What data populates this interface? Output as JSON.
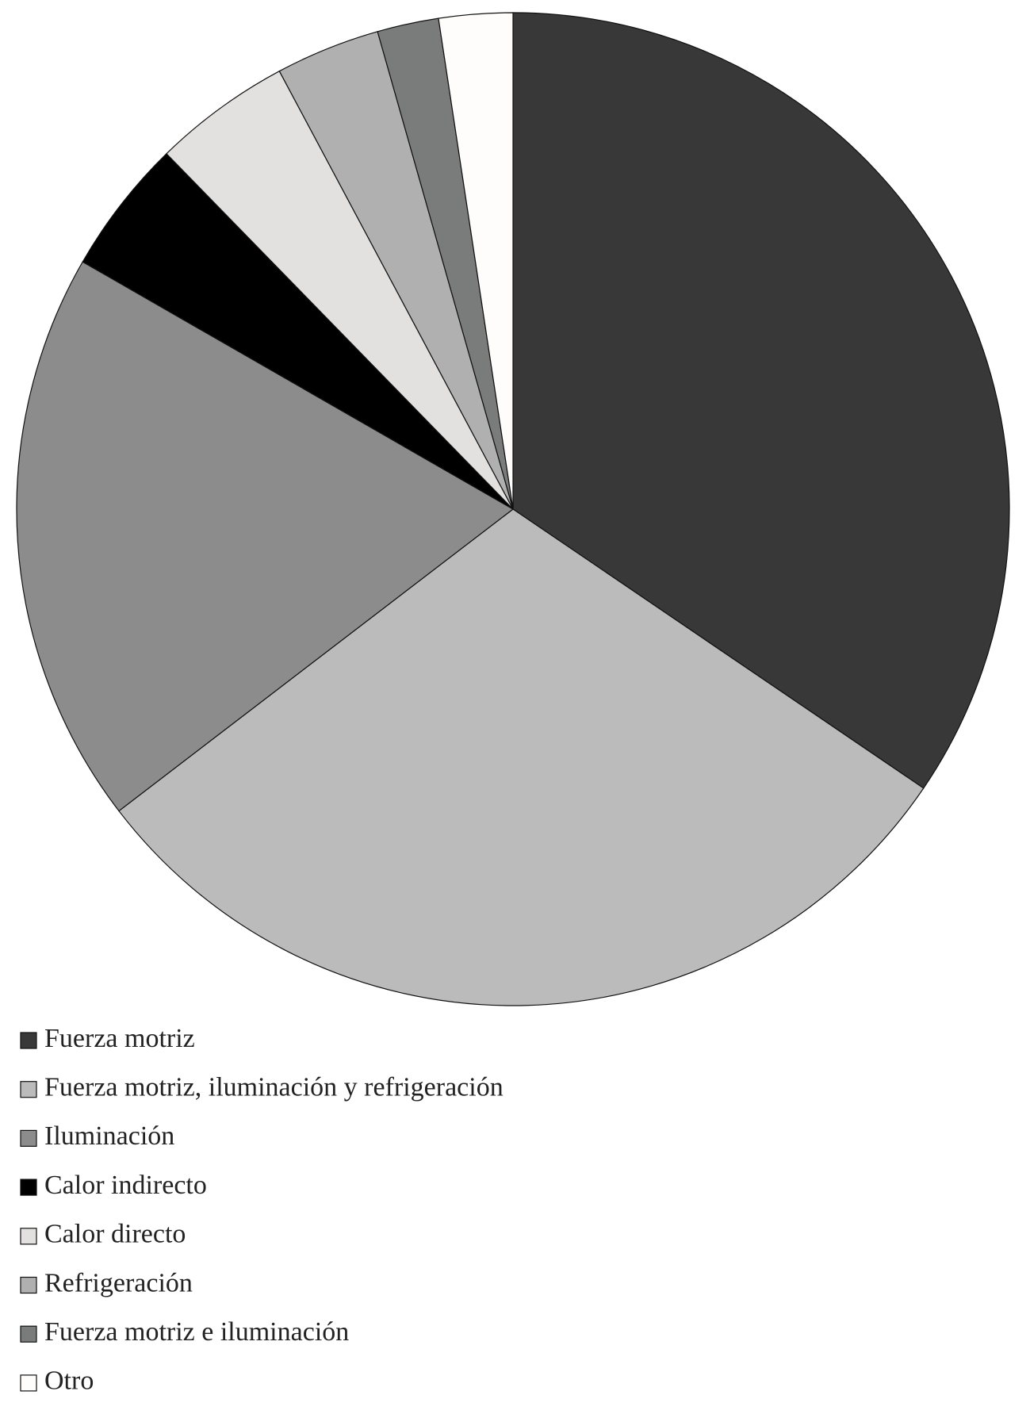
{
  "chart_data": {
    "type": "pie",
    "categories": [
      "Fuerza motriz",
      "Fuerza motriz, iluminación y refrigeración",
      "Iluminación",
      "Calor indirecto",
      "Calor directo",
      "Refrigeración",
      "Fuerza motriz e iluminación",
      "Otro"
    ],
    "values": [
      34.5,
      30.1,
      18.7,
      4.4,
      4.5,
      3.4,
      2.0,
      2.4
    ],
    "colors": [
      "#383838",
      "#bbbbbb",
      "#8b8c8b",
      "#000000",
      "#e2e1e0",
      "#b0b0b0",
      "#7a7c7b",
      "#fffdfb"
    ],
    "legend": "bottom-left"
  }
}
